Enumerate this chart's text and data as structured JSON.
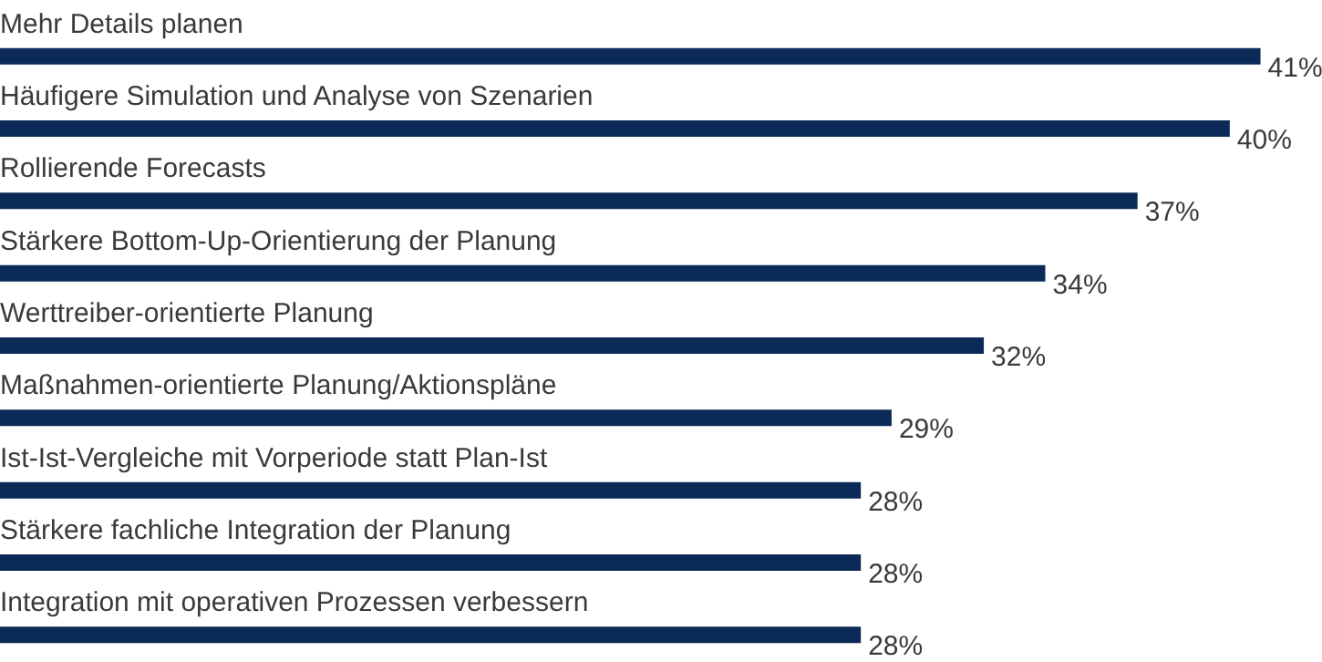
{
  "chart_data": {
    "type": "bar",
    "orientation": "horizontal",
    "categories": [
      "Mehr Details planen",
      "Häufigere Simulation und Analyse von Szenarien",
      "Rollierende Forecasts",
      "Stärkere Bottom-Up-Orientierung der Planung",
      "Werttreiber-orientierte Planung",
      "Maßnahmen-orientierte Planung/Aktionspläne",
      "Ist-Ist-Vergleiche mit Vorperiode statt Plan-Ist",
      "Stärkere fachliche Integration der Planung",
      "Integration mit operativen Prozessen verbessern"
    ],
    "values": [
      41,
      40,
      37,
      34,
      32,
      29,
      28,
      28,
      28
    ],
    "value_labels": [
      "41%",
      "40%",
      "37%",
      "34%",
      "32%",
      "29%",
      "28%",
      "28%",
      "28%"
    ],
    "color": "#0b2a57",
    "xlim": [
      0,
      43
    ],
    "tick_labels": false,
    "grid": false
  }
}
